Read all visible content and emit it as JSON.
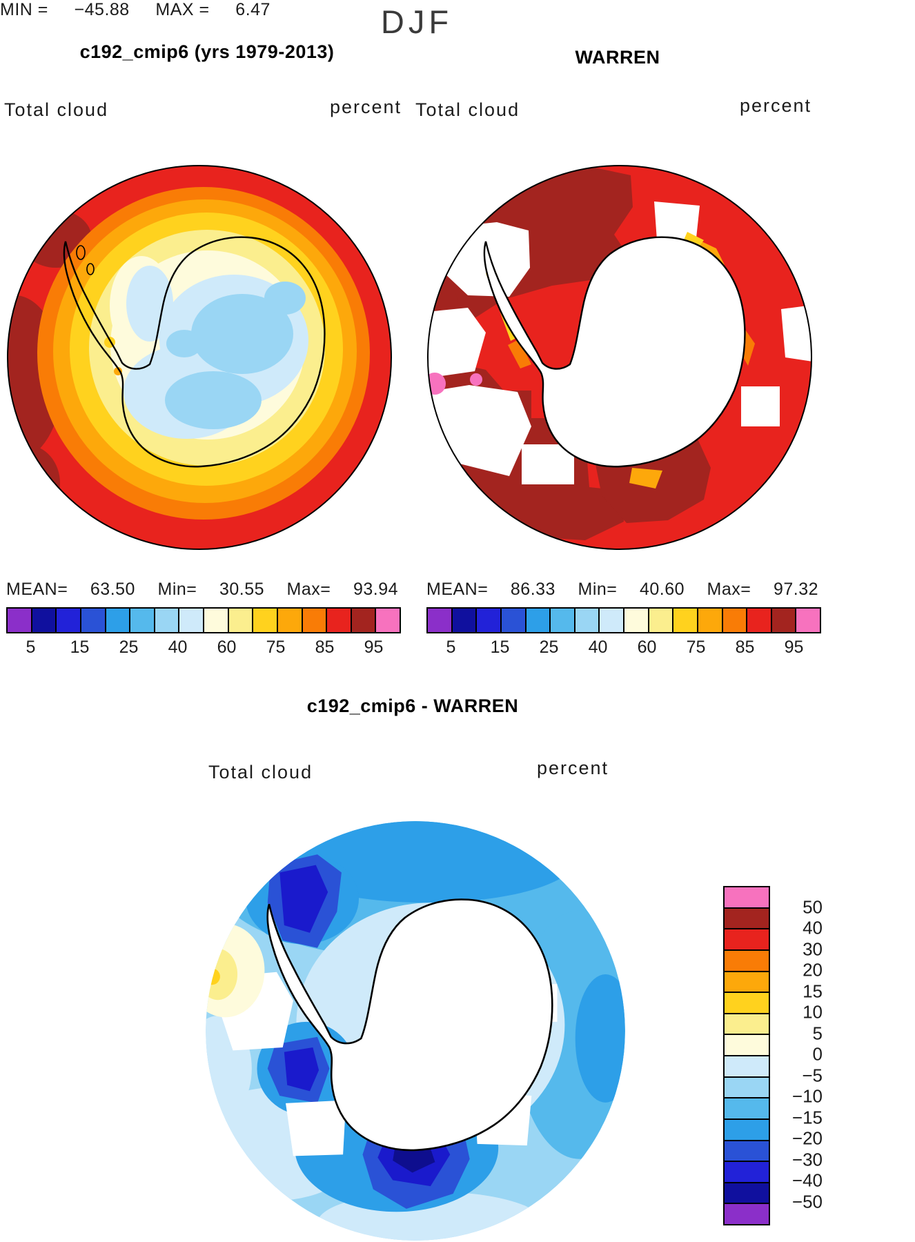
{
  "title": "DJF",
  "colors": {
    "page_bg": "#FFFFFF",
    "text": "#000000",
    "map_outline": "#000000",
    "palette": [
      "#8B2FC9",
      "#10109E",
      "#2222D8",
      "#2A52D6",
      "#2D9FE8",
      "#55B9EC",
      "#9AD6F4",
      "#CFEAFA",
      "#FEFBDC",
      "#FBEE8E",
      "#FFD21E",
      "#FDA80B",
      "#F97C06",
      "#E8231E",
      "#A3241F",
      "#F772BE"
    ]
  },
  "top_panels": [
    {
      "title": "c192_cmip6 (yrs 1979-2013)",
      "var_label": "Total cloud",
      "units_label": "percent",
      "stats": {
        "mean_label": "MEAN=",
        "mean": "63.50",
        "min_label": "Min=",
        "min": "30.55",
        "max_label": "Max=",
        "max": "93.94"
      },
      "colorbar": {
        "tick_labels": [
          "5",
          "15",
          "25",
          "40",
          "60",
          "75",
          "85",
          "95"
        ],
        "tick_boundaries": [
          1,
          3,
          5,
          7,
          9,
          11,
          13,
          15
        ]
      }
    },
    {
      "title": "WARREN",
      "var_label": "Total cloud",
      "units_label": "percent",
      "stats": {
        "mean_label": "MEAN=",
        "mean": "86.33",
        "min_label": "Min=",
        "min": "40.60",
        "max_label": "Max=",
        "max": "97.32"
      },
      "colorbar": {
        "tick_labels": [
          "5",
          "15",
          "25",
          "40",
          "60",
          "75",
          "85",
          "95"
        ],
        "tick_boundaries": [
          1,
          3,
          5,
          7,
          9,
          11,
          13,
          15
        ]
      }
    }
  ],
  "diff_panel": {
    "title": "c192_cmip6 - WARREN",
    "var_label": "Total cloud",
    "units_label": "percent",
    "range": {
      "min_label": "MIN =",
      "min_value": "−45.88",
      "max_label": "MAX =",
      "max_value": "6.47"
    },
    "colorbar": {
      "labels": [
        "50",
        "40",
        "30",
        "20",
        "15",
        "10",
        "5",
        "0",
        "−5",
        "−10",
        "−15",
        "−20",
        "−30",
        "−40",
        "−50"
      ]
    }
  },
  "chart_data": {
    "type": "heatmap",
    "title": "DJF",
    "projection": "south polar stereographic (Antarctica)",
    "variable": "Total cloud",
    "units": "percent",
    "contour_levels": [
      5,
      10,
      15,
      20,
      25,
      30,
      40,
      50,
      60,
      70,
      75,
      80,
      85,
      90,
      95
    ],
    "palette": [
      "#8B2FC9",
      "#10109E",
      "#2222D8",
      "#2A52D6",
      "#2D9FE8",
      "#55B9EC",
      "#9AD6F4",
      "#CFEAFA",
      "#FEFBDC",
      "#FBEE8E",
      "#FFD21E",
      "#FDA80B",
      "#F97C06",
      "#E8231E",
      "#A3241F",
      "#F772BE"
    ],
    "panels": [
      {
        "name": "c192_cmip6 (yrs 1979-2013)",
        "mean": 63.5,
        "min": 30.55,
        "max": 93.94,
        "colorbar_ticks": [
          5,
          15,
          25,
          40,
          60,
          75,
          85,
          95
        ],
        "legend_position": "below panel, horizontal"
      },
      {
        "name": "WARREN",
        "mean": 86.33,
        "min": 40.6,
        "max": 97.32,
        "colorbar_ticks": [
          5,
          15,
          25,
          40,
          60,
          75,
          85,
          95
        ],
        "legend_position": "below panel, horizontal"
      },
      {
        "name": "c192_cmip6 - WARREN",
        "min": -45.88,
        "max": 6.47,
        "colorbar_ticks": [
          50,
          40,
          30,
          20,
          15,
          10,
          5,
          0,
          -5,
          -10,
          -15,
          -20,
          -30,
          -40,
          -50
        ],
        "diff_contour_levels": [
          -50,
          -40,
          -30,
          -20,
          -15,
          -10,
          -5,
          0,
          5,
          10,
          15,
          20,
          30,
          40,
          50
        ],
        "legend_position": "right of panel, vertical"
      }
    ]
  }
}
